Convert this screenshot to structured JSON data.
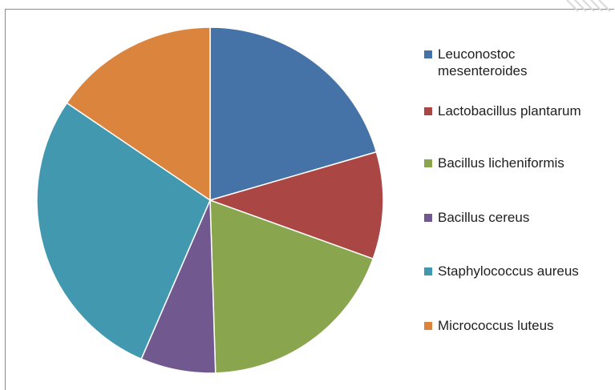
{
  "chart_data": {
    "type": "pie",
    "title": "",
    "legend_position": "right",
    "slices": [
      {
        "label": "Leuconostoc mesenteroides",
        "value": 20.5,
        "color": "#4572A7"
      },
      {
        "label": "Lactobacillus plantarum",
        "value": 10.0,
        "color": "#AA4643"
      },
      {
        "label": "Bacillus licheniformis",
        "value": 19.0,
        "color": "#89A54E"
      },
      {
        "label": "Bacillus cereus",
        "value": 7.0,
        "color": "#71588F"
      },
      {
        "label": "Staphylococcus aureus",
        "value": 28.0,
        "color": "#4198AF"
      },
      {
        "label": "Micrococcus luteus",
        "value": 15.5,
        "color": "#DB843D"
      }
    ]
  }
}
